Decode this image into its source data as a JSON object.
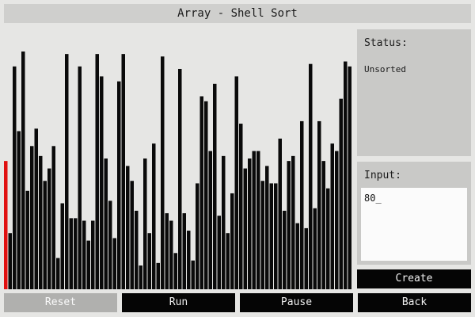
{
  "window": {
    "title": "Array - Shell Sort"
  },
  "status": {
    "heading": "Status:",
    "value": "Unsorted"
  },
  "input": {
    "heading": "Input:",
    "value": "80_"
  },
  "buttons": {
    "create": "Create",
    "reset": "Reset",
    "run": "Run",
    "pause": "Pause",
    "back": "Back"
  },
  "colors": {
    "bar": "#0a0a0a",
    "highlight": "#e01010"
  },
  "chart_data": {
    "type": "bar",
    "highlight_index": 0,
    "values": [
      42,
      13,
      80,
      54,
      86,
      30,
      48,
      55,
      44,
      34,
      39,
      48,
      3,
      25,
      85,
      19,
      19,
      80,
      18,
      10,
      18,
      85,
      76,
      43,
      26,
      11,
      74,
      85,
      40,
      34,
      22,
      0,
      43,
      13,
      49,
      1,
      84,
      21,
      18,
      5,
      79,
      21,
      14,
      2,
      33,
      68,
      66,
      46,
      73,
      20,
      44,
      13,
      29,
      76,
      57,
      39,
      43,
      46,
      46,
      34,
      40,
      33,
      33,
      51,
      22,
      42,
      44,
      17,
      58,
      15,
      81,
      23,
      58,
      42,
      31,
      49,
      46,
      67,
      82,
      80
    ]
  }
}
